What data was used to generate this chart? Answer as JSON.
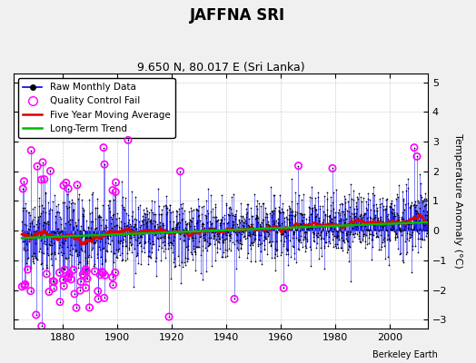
{
  "title": "JAFFNA SRI",
  "subtitle": "9.650 N, 80.017 E (Sri Lanka)",
  "ylabel": "Temperature Anomaly (°C)",
  "credit": "Berkeley Earth",
  "ylim": [
    -3.3,
    5.3
  ],
  "xlim": [
    1862,
    2014
  ],
  "xticks": [
    1880,
    1900,
    1920,
    1940,
    1960,
    1980,
    2000
  ],
  "yticks": [
    -3,
    -2,
    -1,
    0,
    1,
    2,
    3,
    4,
    5
  ],
  "raw_color": "#0000ee",
  "ma_color": "#dd0000",
  "trend_color": "#00bb00",
  "qc_color": "#ff00ff",
  "background_color": "#f0f0f0",
  "plot_bg_color": "#ffffff",
  "start_year": 1865,
  "end_year": 2013,
  "seed": 17
}
